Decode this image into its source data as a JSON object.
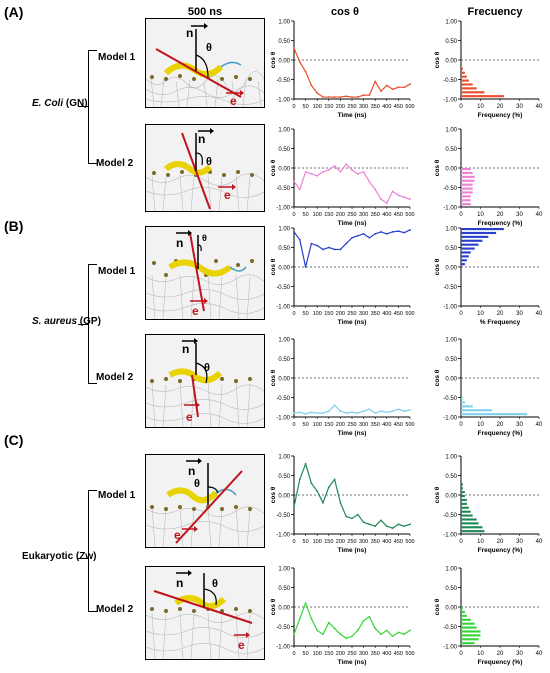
{
  "headers": {
    "col1": "500 ns",
    "col2": "cos θ",
    "col3": "Frecuency"
  },
  "panels": [
    {
      "letter": "(A)",
      "org_name": "E. Coli",
      "org_suffix": " (GN)",
      "models": [
        "Model 1",
        "Model 2"
      ]
    },
    {
      "letter": "(B)",
      "org_name": "S. aureus",
      "org_suffix": " (GP)",
      "models": [
        "Model 1",
        "Model 2"
      ]
    },
    {
      "letter": "(C)",
      "org_name": "",
      "org_suffix": "Eukaryotic (Zw)",
      "models": [
        "Model 1",
        "Model 2"
      ]
    }
  ],
  "snapshot_labels": {
    "n": "n",
    "e": "e",
    "theta": "θ"
  },
  "axis_text": {
    "ts_xlabel": "Time (ns)",
    "ts_ylabel": "cos θ",
    "hist_ylabel": "cos θ",
    "hist_xlabel": "Frequency (%)",
    "hist_xlabel_alt": "% Frequency"
  },
  "colors": {
    "A1": "#e8502f",
    "A2": "#ee82d6",
    "B1": "#2a3fcc",
    "B2": "#7fd0ea",
    "C1": "#1f8a57",
    "C2": "#36d63a",
    "peptide": "#e8d200",
    "arrow_e": "#c0141c",
    "lipid_head": "#7a6a2a"
  },
  "chart_data": [
    {
      "id": "A1-time",
      "type": "line",
      "title": "",
      "xlabel": "Time (ns)",
      "ylabel": "cos θ",
      "xlim": [
        0,
        500
      ],
      "ylim": [
        -1,
        1
      ],
      "reference_line": 0,
      "x": [
        0,
        25,
        50,
        75,
        100,
        125,
        150,
        175,
        200,
        225,
        250,
        275,
        300,
        325,
        350,
        375,
        400,
        425,
        450,
        475,
        500
      ],
      "y": [
        0.3,
        -0.05,
        -0.3,
        -0.65,
        -0.85,
        -0.95,
        -0.95,
        -0.95,
        -0.95,
        -0.93,
        -0.95,
        -0.95,
        -0.9,
        -0.9,
        -0.55,
        -0.8,
        -0.65,
        -0.75,
        -0.7,
        -0.7,
        -0.62
      ]
    },
    {
      "id": "A1-hist",
      "type": "bar",
      "orientation": "horizontal",
      "xlabel": "Frequency (%)",
      "ylabel": "cos θ",
      "xlim": [
        0,
        40
      ],
      "ylim": [
        -1,
        1
      ],
      "bins": [
        -0.95,
        -0.85,
        -0.75,
        -0.65,
        -0.55,
        -0.45,
        -0.35,
        -0.25,
        -0.15,
        -0.05
      ],
      "values": [
        22,
        12,
        8,
        6,
        4,
        3,
        2,
        1,
        0.5,
        0.5
      ]
    },
    {
      "id": "A2-time",
      "type": "line",
      "xlabel": "Time (ns)",
      "ylabel": "cos θ",
      "xlim": [
        0,
        500
      ],
      "ylim": [
        -1,
        1
      ],
      "reference_line": 0,
      "x": [
        0,
        25,
        50,
        75,
        100,
        125,
        150,
        175,
        200,
        225,
        250,
        275,
        300,
        325,
        350,
        375,
        400,
        425,
        450,
        475,
        500
      ],
      "y": [
        -0.35,
        -0.55,
        -0.1,
        -0.15,
        -0.2,
        -0.1,
        -0.05,
        0.05,
        -0.1,
        0.1,
        -0.05,
        -0.15,
        -0.1,
        -0.35,
        -0.55,
        -0.8,
        -0.9,
        -0.6,
        -0.7,
        -0.75,
        -0.8
      ]
    },
    {
      "id": "A2-hist",
      "type": "bar",
      "orientation": "horizontal",
      "xlabel": "Frequency (%)",
      "ylabel": "cos θ",
      "xlim": [
        0,
        40
      ],
      "ylim": [
        -1,
        1
      ],
      "bins": [
        -0.95,
        -0.85,
        -0.75,
        -0.65,
        -0.55,
        -0.45,
        -0.35,
        -0.25,
        -0.15,
        -0.05
      ],
      "values": [
        5,
        5,
        5,
        6,
        6,
        6,
        7,
        7,
        6,
        5
      ]
    },
    {
      "id": "B1-time",
      "type": "line",
      "xlabel": "Time (ns)",
      "ylabel": "cos θ",
      "xlim": [
        0,
        500
      ],
      "ylim": [
        -1,
        1
      ],
      "reference_line": 0,
      "x": [
        0,
        25,
        50,
        75,
        100,
        125,
        150,
        175,
        200,
        225,
        250,
        275,
        300,
        325,
        350,
        375,
        400,
        425,
        450,
        475,
        500
      ],
      "y": [
        0.9,
        0.7,
        0.0,
        0.6,
        0.55,
        0.45,
        0.5,
        0.45,
        0.45,
        0.6,
        0.75,
        0.8,
        0.85,
        0.75,
        0.85,
        0.9,
        0.85,
        0.9,
        0.92,
        0.88,
        0.95
      ]
    },
    {
      "id": "B1-hist",
      "type": "bar",
      "orientation": "horizontal",
      "xlabel": "% Frequency",
      "ylabel": "cos θ",
      "xlim": [
        0,
        40
      ],
      "ylim": [
        -1,
        1
      ],
      "bins": [
        0.95,
        0.85,
        0.75,
        0.65,
        0.55,
        0.45,
        0.35,
        0.25,
        0.15,
        0.05
      ],
      "values": [
        22,
        18,
        14,
        11,
        9,
        7,
        5,
        4,
        3,
        2
      ]
    },
    {
      "id": "B2-time",
      "type": "line",
      "xlabel": "Time (ns)",
      "ylabel": "cos θ",
      "xlim": [
        0,
        500
      ],
      "ylim": [
        -1,
        1
      ],
      "reference_line": 0,
      "x": [
        0,
        25,
        50,
        75,
        100,
        125,
        150,
        175,
        200,
        225,
        250,
        275,
        300,
        325,
        350,
        375,
        400,
        425,
        450,
        475,
        500
      ],
      "y": [
        -0.9,
        -0.88,
        -0.92,
        -0.88,
        -0.9,
        -0.9,
        -0.85,
        -0.7,
        -0.85,
        -0.9,
        -0.88,
        -0.9,
        -0.85,
        -0.8,
        -0.9,
        -0.85,
        -0.88,
        -0.85,
        -0.8,
        -0.85,
        -0.82
      ]
    },
    {
      "id": "B2-hist",
      "type": "bar",
      "orientation": "horizontal",
      "xlabel": "Frequency (%)",
      "ylabel": "cos θ",
      "xlim": [
        0,
        40
      ],
      "ylim": [
        -1,
        1
      ],
      "bins": [
        -0.95,
        -0.85,
        -0.75,
        -0.65,
        -0.55
      ],
      "values": [
        34,
        16,
        6,
        2,
        1
      ]
    },
    {
      "id": "C1-time",
      "type": "line",
      "xlabel": "Time (ns)",
      "ylabel": "cos θ",
      "xlim": [
        0,
        500
      ],
      "ylim": [
        -1,
        1
      ],
      "reference_line": 0,
      "x": [
        0,
        25,
        50,
        75,
        100,
        125,
        150,
        175,
        200,
        225,
        250,
        275,
        300,
        325,
        350,
        375,
        400,
        425,
        450,
        475,
        500
      ],
      "y": [
        -0.3,
        0.4,
        0.8,
        0.3,
        0.1,
        -0.2,
        0.2,
        0.4,
        -0.2,
        -0.55,
        -0.6,
        -0.5,
        -0.7,
        -0.75,
        -0.8,
        -0.65,
        -0.8,
        -0.85,
        -0.75,
        -0.8,
        -0.75
      ]
    },
    {
      "id": "C1-hist",
      "type": "bar",
      "orientation": "horizontal",
      "xlabel": "Frequency (%)",
      "ylabel": "cos θ",
      "xlim": [
        0,
        40
      ],
      "ylim": [
        -1,
        1
      ],
      "bins": [
        -0.95,
        -0.85,
        -0.75,
        -0.65,
        -0.55,
        -0.45,
        -0.35,
        -0.25,
        -0.15,
        -0.05,
        0.05,
        0.15,
        0.25
      ],
      "values": [
        12,
        11,
        9,
        8,
        6,
        5,
        4,
        3,
        3,
        2,
        2,
        1,
        1
      ]
    },
    {
      "id": "C2-time",
      "type": "line",
      "xlabel": "Time (ns)",
      "ylabel": "cos θ",
      "xlim": [
        0,
        500
      ],
      "ylim": [
        -1,
        1
      ],
      "reference_line": 0,
      "x": [
        0,
        25,
        50,
        75,
        100,
        125,
        150,
        175,
        200,
        225,
        250,
        275,
        300,
        325,
        350,
        375,
        400,
        425,
        450,
        475,
        500
      ],
      "y": [
        -0.7,
        -0.3,
        0.1,
        -0.3,
        -0.6,
        -0.7,
        -0.4,
        -0.55,
        -0.7,
        -0.8,
        -0.75,
        -0.6,
        -0.35,
        -0.25,
        -0.55,
        -0.7,
        -0.6,
        -0.75,
        -0.65,
        -0.7,
        -0.6
      ]
    },
    {
      "id": "C2-hist",
      "type": "bar",
      "orientation": "horizontal",
      "xlabel": "Frequency (%)",
      "ylabel": "cos θ",
      "xlim": [
        0,
        40
      ],
      "ylim": [
        -1,
        1
      ],
      "bins": [
        -0.95,
        -0.85,
        -0.75,
        -0.65,
        -0.55,
        -0.45,
        -0.35,
        -0.25,
        -0.15,
        -0.05
      ],
      "values": [
        7,
        9,
        10,
        10,
        8,
        7,
        5,
        3,
        2,
        1
      ]
    }
  ]
}
